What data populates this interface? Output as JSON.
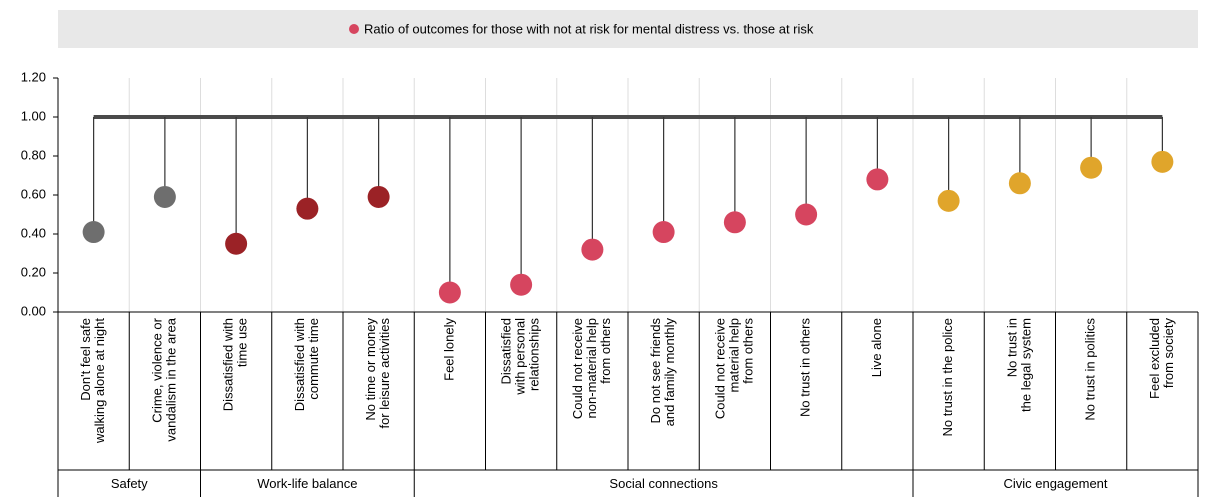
{
  "chart_data": {
    "type": "lollipop",
    "categories": [
      [
        "Don't feel safe",
        "walking alone at night"
      ],
      [
        "Crime, violence or",
        "vandalism in the area"
      ],
      [
        "Dissatisfied with",
        "time use"
      ],
      [
        "Dissatisfied with",
        "commute time"
      ],
      [
        "No time or money",
        "for leisure activities"
      ],
      [
        "Feel lonely"
      ],
      [
        "Dissatisfied",
        "with personal",
        "relationships"
      ],
      [
        "Could not receive",
        "non-material help",
        "from others"
      ],
      [
        "Do not see friends",
        "and family monthly"
      ],
      [
        "Could not receive",
        "material help",
        "from others"
      ],
      [
        "No trust in others"
      ],
      [
        "Live alone"
      ],
      [
        "No trust in the police"
      ],
      [
        "No trust in",
        "the legal system"
      ],
      [
        "No trust in politics"
      ],
      [
        "Feel excluded",
        "from society"
      ]
    ],
    "groups": [
      {
        "name": "Safety",
        "size": 2
      },
      {
        "name": "Work-life balance",
        "size": 3
      },
      {
        "name": "Social connections",
        "size": 7
      },
      {
        "name": "Civic engagement",
        "size": 4
      }
    ],
    "series": [
      {
        "name": "Ratio of outcomes for those with not at risk for mental distress vs. those at risk",
        "color": "#d6455f",
        "values": [
          0.41,
          0.59,
          0.35,
          0.53,
          0.59,
          0.1,
          0.14,
          0.32,
          0.41,
          0.46,
          0.5,
          0.68,
          0.57,
          0.66,
          0.74,
          0.77
        ],
        "point_colors": [
          "#6e6e6e",
          "#6e6e6e",
          "#9b2226",
          "#9b2226",
          "#9b2226",
          "#d6455f",
          "#d6455f",
          "#d6455f",
          "#d6455f",
          "#d6455f",
          "#d6455f",
          "#d6455f",
          "#e0a52b",
          "#e0a52b",
          "#e0a52b",
          "#e0a52b"
        ]
      }
    ],
    "reference_line": 1,
    "ylim": [
      0,
      1.2
    ],
    "yticks": [
      {
        "value": 0,
        "label": "0.00"
      },
      {
        "value": 0.2,
        "label": "0.20"
      },
      {
        "value": 0.4,
        "label": "0.40"
      },
      {
        "value": 0.6,
        "label": "0.60"
      },
      {
        "value": 0.8,
        "label": "0.80"
      },
      {
        "value": 1,
        "label": "1.00"
      },
      {
        "value": 1.2,
        "label": "1.20"
      }
    ]
  }
}
